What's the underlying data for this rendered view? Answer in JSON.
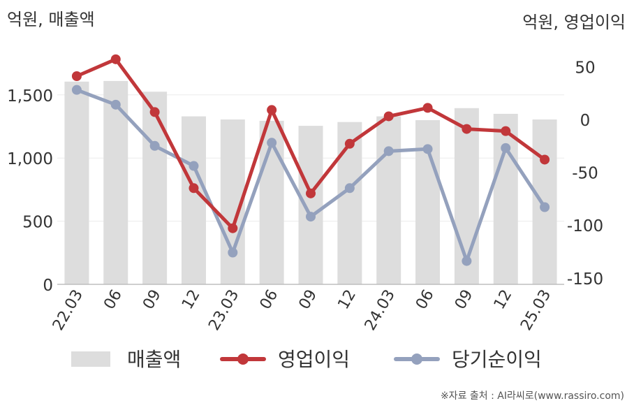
{
  "chart_data": {
    "type": "bar+line",
    "categories": [
      "22.03",
      "06",
      "09",
      "12",
      "23.03",
      "06",
      "09",
      "12",
      "24.03",
      "06",
      "09",
      "12",
      "25.03"
    ],
    "left_axis": {
      "label": "억원, 매출액",
      "ylim": [
        0,
        1800
      ],
      "ticks": [
        0,
        500,
        1000,
        1500
      ],
      "tick_labels": [
        "0",
        "500",
        "1,000",
        "1,500"
      ]
    },
    "right_axis": {
      "label": "억원, 영업이익",
      "ylim": [
        -150,
        60
      ],
      "ticks": [
        50,
        0,
        -50,
        -100,
        -150
      ],
      "tick_labels": [
        "50",
        "0",
        "-50",
        "-100",
        "-150"
      ]
    },
    "series": [
      {
        "name": "매출액",
        "type": "bar",
        "axis": "left",
        "color": "#dddddd",
        "values": [
          1605,
          1610,
          1525,
          1330,
          1305,
          1295,
          1255,
          1285,
          1330,
          1300,
          1395,
          1350,
          1305
        ]
      },
      {
        "name": "영업이익",
        "type": "line",
        "axis": "right",
        "color": "#c1373a",
        "values": [
          41,
          57,
          7,
          -65,
          -103,
          9,
          -70,
          -23,
          3,
          11,
          -9,
          -11,
          -38
        ]
      },
      {
        "name": "당기순이익",
        "type": "line",
        "axis": "right",
        "color": "#94a1bd",
        "values": [
          28,
          14,
          -25,
          -44,
          -126,
          -22,
          -92,
          -65,
          -30,
          -28,
          -134,
          -27,
          -83
        ]
      }
    ],
    "grid": true,
    "legend": "bottom"
  },
  "source_note": "※자료 출처 : AI라씨로(www.rassiro.com)"
}
